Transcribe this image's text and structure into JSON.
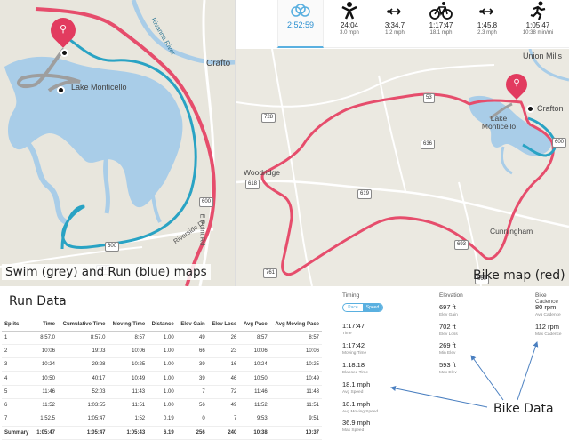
{
  "activities": {
    "total": {
      "time": "2:52:59"
    },
    "swim": {
      "time": "24:04",
      "sub": "3.0 mph",
      "icon": "swimmer-icon"
    },
    "t1": {
      "time": "3:34.7",
      "sub": "1.2 mph",
      "icon": "transition-icon"
    },
    "bike": {
      "time": "1:17:47",
      "sub": "18.1 mph",
      "icon": "bicycle-icon"
    },
    "t2": {
      "time": "1:45.8",
      "sub": "2.3 mph",
      "icon": "transition-icon"
    },
    "run": {
      "time": "1:05:47",
      "sub": "10:38 min/mi",
      "icon": "runner-icon"
    }
  },
  "left_map": {
    "caption": "Swim (grey) and Run (blue) maps",
    "labels": {
      "lake": "Lake Monticello",
      "river": "Rivanna River",
      "crafton": "Crafto",
      "e_point": "E Point Rd",
      "riverside": "Riverside Dr"
    },
    "shields": [
      "600",
      "600",
      "618"
    ],
    "colors": {
      "swim": "#9e9e9e",
      "run": "#29a3c4",
      "bike": "#e64d6c",
      "water": "#a9cde8"
    }
  },
  "right_map": {
    "caption": "Bike map (red)",
    "labels": {
      "union_mills": "Union Mills",
      "crafton": "Crafton",
      "lake": "Lake Monticello",
      "woodridge": "Woodridge",
      "cunningham": "Cunningham"
    },
    "shields": [
      "728",
      "618",
      "53",
      "636",
      "619",
      "693",
      "761",
      "660",
      "600"
    ]
  },
  "run_data": {
    "title": "Run Data",
    "headers": [
      "Splits",
      "Time",
      "Cumulative Time",
      "Moving Time",
      "Distance",
      "Elev Gain",
      "Elev Loss",
      "Avg Pace",
      "Avg Moving Pace"
    ],
    "rows": [
      [
        "1",
        "8:57.0",
        "8:57.0",
        "8:57",
        "1.00",
        "49",
        "26",
        "8:57",
        "8:57"
      ],
      [
        "2",
        "10:06",
        "19:03",
        "10:06",
        "1.00",
        "66",
        "23",
        "10:06",
        "10:06"
      ],
      [
        "3",
        "10:24",
        "29:28",
        "10:25",
        "1.00",
        "39",
        "16",
        "10:24",
        "10:25"
      ],
      [
        "4",
        "10:50",
        "40:17",
        "10:49",
        "1.00",
        "39",
        "46",
        "10:50",
        "10:49"
      ],
      [
        "5",
        "11:46",
        "52:03",
        "11:43",
        "1.00",
        "7",
        "72",
        "11:46",
        "11:43"
      ],
      [
        "6",
        "11:52",
        "1:03:55",
        "11:51",
        "1.00",
        "56",
        "49",
        "11:52",
        "11:51"
      ],
      [
        "7",
        "1:52.5",
        "1:05:47",
        "1:52",
        "0.19",
        "0",
        "7",
        "9:53",
        "9:51"
      ]
    ],
    "summary": [
      "Summary",
      "1:05:47",
      "1:05:47",
      "1:05:43",
      "6.19",
      "256",
      "240",
      "10:38",
      "10:37"
    ]
  },
  "bike_data": {
    "label": "Bike Data",
    "timing": {
      "heading": "Timing",
      "toggle": [
        "Pace",
        "Speed"
      ],
      "stats": [
        {
          "value": "1:17:47",
          "label": "Time"
        },
        {
          "value": "1:17:42",
          "label": "Moving Time"
        },
        {
          "value": "1:18:18",
          "label": "Elapsed Time"
        },
        {
          "value": "18.1 mph",
          "label": "Avg Speed"
        },
        {
          "value": "18.1 mph",
          "label": "Avg Moving Speed"
        },
        {
          "value": "36.9 mph",
          "label": "Max Speed"
        }
      ]
    },
    "elevation": {
      "heading": "Elevation",
      "stats": [
        {
          "value": "697 ft",
          "label": "Elev Gain"
        },
        {
          "value": "702 ft",
          "label": "Elev Loss"
        },
        {
          "value": "269 ft",
          "label": "Min Elev"
        },
        {
          "value": "593 ft",
          "label": "Max Elev"
        }
      ]
    },
    "cadence": {
      "heading": "Bike Cadence",
      "stats": [
        {
          "value": "80 rpm",
          "label": "Avg Cadence"
        },
        {
          "value": "112 rpm",
          "label": "Max Cadence"
        }
      ]
    },
    "arrow_color": "#4a7fc0"
  }
}
